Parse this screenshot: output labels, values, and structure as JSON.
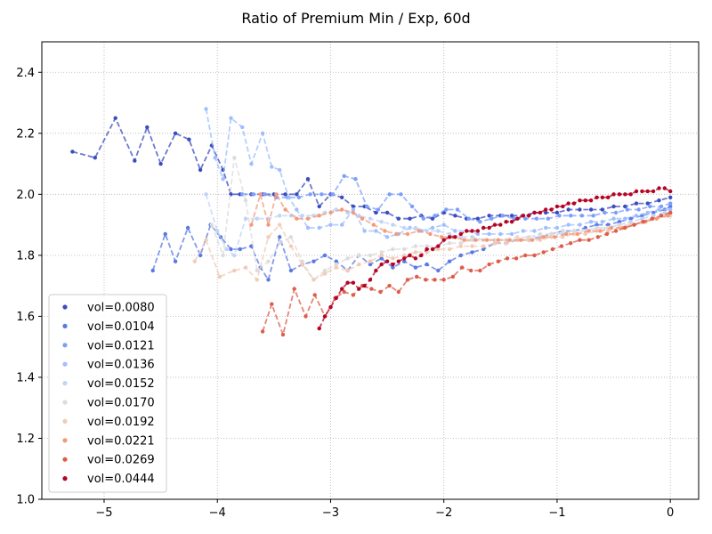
{
  "chart_data": {
    "type": "scatter",
    "title": "Ratio of Premium Min / Exp, 60d",
    "xlabel": "",
    "ylabel": "",
    "xlim": [
      -5.55,
      0.25
    ],
    "ylim": [
      1.0,
      2.5
    ],
    "xticks": [
      -5,
      -4,
      -3,
      -2,
      -1,
      0
    ],
    "xtick_labels": [
      "−5",
      "−4",
      "−3",
      "−2",
      "−1",
      "0"
    ],
    "yticks": [
      1.0,
      1.2,
      1.4,
      1.6,
      1.8,
      2.0,
      2.2,
      2.4
    ],
    "ytick_labels": [
      "1.0",
      "1.2",
      "1.4",
      "1.6",
      "1.8",
      "2.0",
      "2.2",
      "2.4"
    ],
    "grid": true,
    "legend_position": "lower-left",
    "series": [
      {
        "name": "vol=0.0080",
        "color": "#3b4cc0",
        "x": [
          -5.28,
          -5.08,
          -4.9,
          -4.73,
          -4.62,
          -4.5,
          -4.37,
          -4.25,
          -4.15,
          -4.05,
          -3.95,
          -3.88,
          -3.8,
          -3.7,
          -3.6,
          -3.5,
          -3.4,
          -3.3,
          -3.2,
          -3.1,
          -3.0,
          -2.9,
          -2.8,
          -2.7,
          -2.6,
          -2.5,
          -2.4,
          -2.3,
          -2.2,
          -2.1,
          -2.0,
          -1.9,
          -1.8,
          -1.7,
          -1.6,
          -1.5,
          -1.4,
          -1.3,
          -1.2,
          -1.1,
          -1.0,
          -0.9,
          -0.8,
          -0.7,
          -0.6,
          -0.5,
          -0.4,
          -0.3,
          -0.2,
          -0.1,
          0.0
        ],
        "y": [
          2.14,
          2.12,
          2.25,
          2.11,
          2.22,
          2.1,
          2.2,
          2.18,
          2.08,
          2.16,
          2.08,
          2.0,
          2.0,
          2.0,
          2.0,
          2.0,
          2.0,
          2.0,
          2.05,
          1.96,
          2.0,
          1.99,
          1.96,
          1.96,
          1.94,
          1.94,
          1.92,
          1.92,
          1.93,
          1.92,
          1.94,
          1.93,
          1.92,
          1.92,
          1.93,
          1.93,
          1.93,
          1.93,
          1.94,
          1.94,
          1.94,
          1.95,
          1.95,
          1.95,
          1.95,
          1.96,
          1.96,
          1.97,
          1.97,
          1.98,
          1.99
        ]
      },
      {
        "name": "vol=0.0104",
        "color": "#5a78e4",
        "x": [
          -4.57,
          -4.46,
          -4.37,
          -4.26,
          -4.15,
          -4.06,
          -3.97,
          -3.88,
          -3.8,
          -3.7,
          -3.62,
          -3.55,
          -3.45,
          -3.35,
          -3.25,
          -3.15,
          -3.05,
          -2.95,
          -2.85,
          -2.75,
          -2.65,
          -2.55,
          -2.45,
          -2.35,
          -2.25,
          -2.15,
          -2.05,
          -1.95,
          -1.85,
          -1.75,
          -1.65,
          -1.55,
          -1.45,
          -1.35,
          -1.25,
          -1.15,
          -1.05,
          -0.95,
          -0.85,
          -0.75,
          -0.65,
          -0.55,
          -0.45,
          -0.35,
          -0.25,
          -0.15,
          -0.05,
          0.0
        ],
        "y": [
          1.75,
          1.87,
          1.78,
          1.89,
          1.8,
          1.9,
          1.86,
          1.82,
          1.82,
          1.83,
          1.76,
          1.72,
          1.86,
          1.75,
          1.77,
          1.78,
          1.8,
          1.78,
          1.75,
          1.8,
          1.77,
          1.79,
          1.76,
          1.78,
          1.76,
          1.77,
          1.75,
          1.78,
          1.8,
          1.81,
          1.82,
          1.84,
          1.84,
          1.85,
          1.85,
          1.86,
          1.87,
          1.88,
          1.88,
          1.89,
          1.9,
          1.9,
          1.91,
          1.92,
          1.93,
          1.94,
          1.95,
          1.96
        ]
      },
      {
        "name": "vol=0.0121",
        "color": "#7b9ff9",
        "x": [
          -3.78,
          -3.68,
          -3.58,
          -3.48,
          -3.38,
          -3.28,
          -3.18,
          -3.08,
          -2.98,
          -2.88,
          -2.78,
          -2.68,
          -2.58,
          -2.48,
          -2.38,
          -2.28,
          -2.18,
          -2.08,
          -1.98,
          -1.88,
          -1.78,
          -1.68,
          -1.58,
          -1.48,
          -1.38,
          -1.28,
          -1.18,
          -1.08,
          -0.98,
          -0.88,
          -0.78,
          -0.68,
          -0.58,
          -0.48,
          -0.38,
          -0.28,
          -0.18,
          -0.08,
          0.0
        ],
        "y": [
          2.0,
          2.0,
          2.0,
          1.99,
          1.99,
          1.99,
          2.0,
          2.0,
          2.0,
          2.06,
          2.05,
          1.96,
          1.95,
          2.0,
          2.0,
          1.96,
          1.92,
          1.93,
          1.95,
          1.95,
          1.92,
          1.91,
          1.92,
          1.93,
          1.92,
          1.92,
          1.92,
          1.92,
          1.93,
          1.93,
          1.93,
          1.93,
          1.94,
          1.94,
          1.95,
          1.95,
          1.96,
          1.96,
          1.97
        ]
      },
      {
        "name": "vol=0.0136",
        "color": "#9ebeff",
        "x": [
          -4.1,
          -4.02,
          -3.95,
          -3.88,
          -3.78,
          -3.7,
          -3.6,
          -3.52,
          -3.45,
          -3.37,
          -3.3,
          -3.2,
          -3.1,
          -3.0,
          -2.9,
          -2.8,
          -2.7,
          -2.6,
          -2.5,
          -2.4,
          -2.3,
          -2.2,
          -2.1,
          -2.0,
          -1.9,
          -1.8,
          -1.7,
          -1.6,
          -1.5,
          -1.4,
          -1.3,
          -1.2,
          -1.1,
          -1.0,
          -0.9,
          -0.8,
          -0.7,
          -0.6,
          -0.5,
          -0.4,
          -0.3,
          -0.2,
          -0.1,
          0.0
        ],
        "y": [
          2.28,
          2.12,
          2.05,
          2.25,
          2.22,
          2.1,
          2.2,
          2.09,
          2.08,
          1.99,
          1.95,
          1.89,
          1.89,
          1.9,
          1.9,
          1.95,
          1.88,
          1.88,
          1.86,
          1.87,
          1.89,
          1.88,
          1.89,
          1.9,
          1.88,
          1.88,
          1.87,
          1.87,
          1.87,
          1.87,
          1.88,
          1.88,
          1.89,
          1.89,
          1.9,
          1.9,
          1.91,
          1.91,
          1.92,
          1.92,
          1.93,
          1.94,
          1.95,
          1.95
        ]
      },
      {
        "name": "vol=0.0152",
        "color": "#c0d4f5",
        "x": [
          -4.1,
          -4.0,
          -3.92,
          -3.85,
          -3.75,
          -3.65,
          -3.55,
          -3.45,
          -3.35,
          -3.25,
          -3.15,
          -3.05,
          -2.95,
          -2.85,
          -2.75,
          -2.65,
          -2.55,
          -2.45,
          -2.35,
          -2.25,
          -2.15,
          -2.05,
          -1.95,
          -1.85,
          -1.75,
          -1.65,
          -1.55,
          -1.45,
          -1.35,
          -1.25,
          -1.15,
          -1.05,
          -0.95,
          -0.85,
          -0.75,
          -0.65,
          -0.55,
          -0.45,
          -0.35,
          -0.25,
          -0.15,
          -0.05,
          0.0
        ],
        "y": [
          2.0,
          1.88,
          1.82,
          1.8,
          1.92,
          1.92,
          1.92,
          1.93,
          1.93,
          1.93,
          1.93,
          1.94,
          1.95,
          1.94,
          1.93,
          1.92,
          1.91,
          1.9,
          1.89,
          1.89,
          1.88,
          1.88,
          1.87,
          1.86,
          1.86,
          1.85,
          1.85,
          1.85,
          1.85,
          1.86,
          1.86,
          1.87,
          1.87,
          1.88,
          1.88,
          1.89,
          1.89,
          1.9,
          1.91,
          1.92,
          1.93,
          1.94,
          1.94
        ]
      },
      {
        "name": "vol=0.0170",
        "color": "#dddcdc",
        "x": [
          -4.05,
          -3.95,
          -3.85,
          -3.75,
          -3.65,
          -3.55,
          -3.45,
          -3.35,
          -3.25,
          -3.15,
          -3.05,
          -2.95,
          -2.85,
          -2.75,
          -2.65,
          -2.55,
          -2.45,
          -2.35,
          -2.25,
          -2.15,
          -2.05,
          -1.95,
          -1.85,
          -1.75,
          -1.65,
          -1.55,
          -1.45,
          -1.35,
          -1.25,
          -1.15,
          -1.05,
          -0.95,
          -0.85,
          -0.75,
          -0.65,
          -0.55,
          -0.45,
          -0.35,
          -0.25,
          -0.15,
          -0.05,
          0.0
        ],
        "y": [
          1.9,
          1.8,
          2.12,
          1.98,
          1.75,
          1.78,
          1.84,
          1.86,
          1.78,
          1.72,
          1.75,
          1.77,
          1.79,
          1.8,
          1.8,
          1.81,
          1.82,
          1.82,
          1.83,
          1.83,
          1.83,
          1.84,
          1.84,
          1.85,
          1.85,
          1.85,
          1.85,
          1.86,
          1.86,
          1.87,
          1.87,
          1.88,
          1.88,
          1.88,
          1.89,
          1.89,
          1.9,
          1.9,
          1.91,
          1.92,
          1.93,
          1.93
        ]
      },
      {
        "name": "vol=0.0192",
        "color": "#f2cbb7",
        "x": [
          -4.2,
          -4.1,
          -3.98,
          -3.85,
          -3.75,
          -3.65,
          -3.55,
          -3.45,
          -3.35,
          -3.25,
          -3.15,
          -3.05,
          -2.95,
          -2.85,
          -2.75,
          -2.65,
          -2.55,
          -2.45,
          -2.35,
          -2.25,
          -2.15,
          -2.05,
          -1.95,
          -1.85,
          -1.75,
          -1.65,
          -1.55,
          -1.45,
          -1.35,
          -1.25,
          -1.15,
          -1.05,
          -0.95,
          -0.85,
          -0.75,
          -0.65,
          -0.55,
          -0.45,
          -0.35,
          -0.25,
          -0.15,
          -0.05,
          0.0
        ],
        "y": [
          1.78,
          1.85,
          1.73,
          1.75,
          1.76,
          1.72,
          1.86,
          1.9,
          1.83,
          1.77,
          1.72,
          1.74,
          1.76,
          1.75,
          1.77,
          1.78,
          1.8,
          1.79,
          1.8,
          1.81,
          1.81,
          1.82,
          1.82,
          1.83,
          1.83,
          1.83,
          1.84,
          1.84,
          1.85,
          1.85,
          1.85,
          1.86,
          1.86,
          1.87,
          1.87,
          1.88,
          1.88,
          1.89,
          1.9,
          1.91,
          1.92,
          1.93,
          1.93
        ]
      },
      {
        "name": "vol=0.0221",
        "color": "#f49a7b",
        "x": [
          -3.7,
          -3.62,
          -3.55,
          -3.48,
          -3.4,
          -3.3,
          -3.2,
          -3.1,
          -3.0,
          -2.9,
          -2.8,
          -2.72,
          -2.62,
          -2.52,
          -2.42,
          -2.32,
          -2.22,
          -2.12,
          -2.02,
          -1.92,
          -1.82,
          -1.72,
          -1.62,
          -1.52,
          -1.42,
          -1.32,
          -1.22,
          -1.12,
          -1.02,
          -0.92,
          -0.82,
          -0.72,
          -0.62,
          -0.52,
          -0.42,
          -0.32,
          -0.22,
          -0.12,
          -0.02,
          0.0
        ],
        "y": [
          1.9,
          2.0,
          1.9,
          2.0,
          1.95,
          1.92,
          1.92,
          1.93,
          1.94,
          1.95,
          1.94,
          1.92,
          1.9,
          1.88,
          1.87,
          1.87,
          1.88,
          1.87,
          1.86,
          1.86,
          1.85,
          1.85,
          1.85,
          1.85,
          1.85,
          1.85,
          1.85,
          1.86,
          1.86,
          1.87,
          1.87,
          1.88,
          1.88,
          1.89,
          1.89,
          1.9,
          1.91,
          1.92,
          1.93,
          1.94
        ]
      },
      {
        "name": "vol=0.0269",
        "color": "#dc5d4a",
        "x": [
          -3.6,
          -3.52,
          -3.42,
          -3.32,
          -3.22,
          -3.14,
          -3.05,
          -2.96,
          -2.88,
          -2.8,
          -2.72,
          -2.64,
          -2.56,
          -2.48,
          -2.4,
          -2.32,
          -2.24,
          -2.16,
          -2.08,
          -2.0,
          -1.92,
          -1.84,
          -1.76,
          -1.68,
          -1.6,
          -1.52,
          -1.44,
          -1.36,
          -1.28,
          -1.2,
          -1.12,
          -1.04,
          -0.96,
          -0.88,
          -0.8,
          -0.72,
          -0.64,
          -0.56,
          -0.48,
          -0.4,
          -0.32,
          -0.24,
          -0.16,
          -0.08,
          0.0
        ],
        "y": [
          1.55,
          1.64,
          1.54,
          1.69,
          1.6,
          1.67,
          1.6,
          1.66,
          1.68,
          1.67,
          1.7,
          1.69,
          1.68,
          1.7,
          1.68,
          1.72,
          1.73,
          1.72,
          1.72,
          1.72,
          1.73,
          1.76,
          1.75,
          1.75,
          1.77,
          1.78,
          1.79,
          1.79,
          1.8,
          1.8,
          1.81,
          1.82,
          1.83,
          1.84,
          1.85,
          1.85,
          1.86,
          1.87,
          1.88,
          1.89,
          1.9,
          1.91,
          1.92,
          1.93,
          1.94
        ]
      },
      {
        "name": "vol=0.0444",
        "color": "#b40426",
        "x": [
          -3.1,
          -3.05,
          -3.0,
          -2.95,
          -2.9,
          -2.85,
          -2.8,
          -2.75,
          -2.7,
          -2.65,
          -2.6,
          -2.55,
          -2.5,
          -2.45,
          -2.4,
          -2.35,
          -2.3,
          -2.25,
          -2.2,
          -2.15,
          -2.1,
          -2.05,
          -2.0,
          -1.95,
          -1.9,
          -1.85,
          -1.8,
          -1.75,
          -1.7,
          -1.65,
          -1.6,
          -1.55,
          -1.5,
          -1.45,
          -1.4,
          -1.35,
          -1.3,
          -1.25,
          -1.2,
          -1.15,
          -1.1,
          -1.05,
          -1.0,
          -0.95,
          -0.9,
          -0.85,
          -0.8,
          -0.75,
          -0.7,
          -0.65,
          -0.6,
          -0.55,
          -0.5,
          -0.45,
          -0.4,
          -0.35,
          -0.3,
          -0.25,
          -0.2,
          -0.15,
          -0.1,
          -0.05,
          0.0
        ],
        "y": [
          1.56,
          1.6,
          1.63,
          1.66,
          1.69,
          1.71,
          1.71,
          1.69,
          1.7,
          1.72,
          1.75,
          1.77,
          1.78,
          1.77,
          1.78,
          1.79,
          1.8,
          1.79,
          1.8,
          1.82,
          1.82,
          1.83,
          1.85,
          1.86,
          1.86,
          1.87,
          1.88,
          1.88,
          1.88,
          1.89,
          1.89,
          1.9,
          1.9,
          1.91,
          1.91,
          1.92,
          1.93,
          1.93,
          1.94,
          1.94,
          1.95,
          1.95,
          1.96,
          1.96,
          1.97,
          1.97,
          1.98,
          1.98,
          1.98,
          1.99,
          1.99,
          1.99,
          2.0,
          2.0,
          2.0,
          2.0,
          2.01,
          2.01,
          2.01,
          2.01,
          2.02,
          2.02,
          2.01
        ]
      }
    ]
  }
}
